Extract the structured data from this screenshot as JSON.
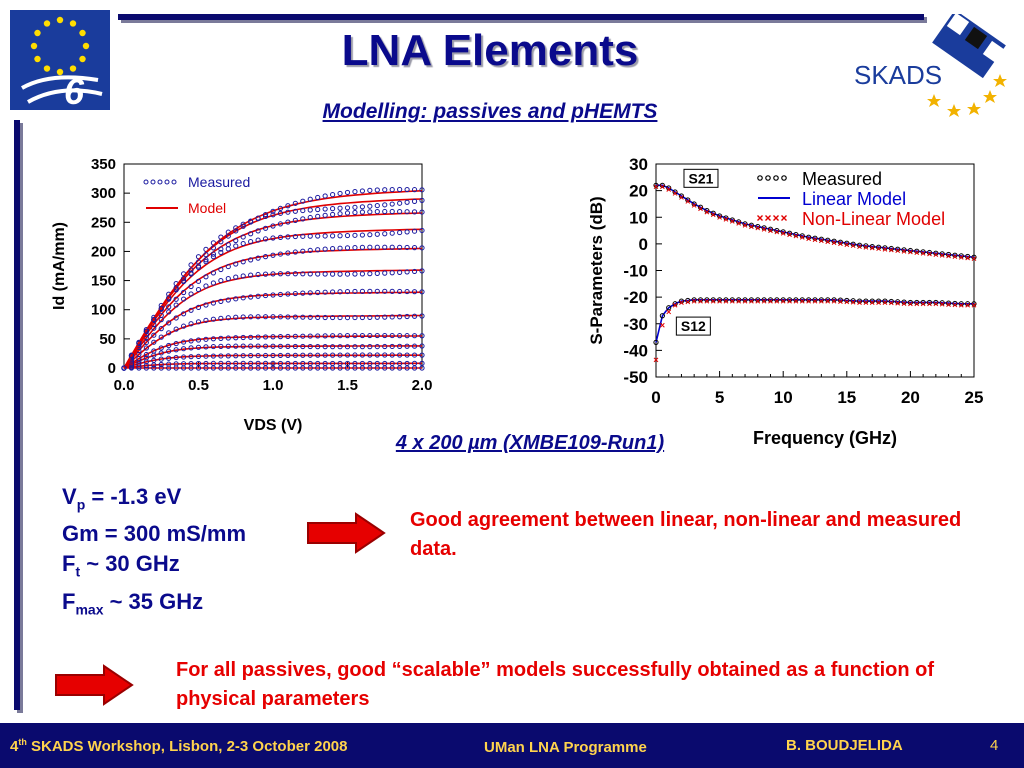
{
  "slide": {
    "title": "LNA Elements",
    "subtitle": "Modelling: passives and pHEMTS",
    "device_label": "4 x 200 µm (XMBE109-Run1)",
    "params": [
      {
        "base": "V",
        "sub": "p",
        "rest": " = -1.3 eV"
      },
      {
        "base": "Gm = 300 mS/mm",
        "sub": "",
        "rest": ""
      },
      {
        "base": "F",
        "sub": "t",
        "rest": " ~ 30 GHz"
      },
      {
        "base": "F",
        "sub": "max",
        "rest": " ~ 35 GHz"
      }
    ],
    "conclusion": "Good agreement between linear, non-linear and measured data.",
    "passives_note": "For all passives, good “scalable” models successfully obtained as a function of physical parameters",
    "logo_skads": "SKADS"
  },
  "footer": {
    "event_ordinal": "4",
    "event_sup": "th",
    "event_rest": " SKADS Workshop, Lisbon, 2-3 October 2008",
    "programme": "UMan LNA Programme",
    "author": "B. BOUDJELIDA",
    "page": "4"
  },
  "colors": {
    "navy": "#0a0a6e",
    "title_blue": "#0a0a8c",
    "accent_red": "#e60000",
    "measured": "#1a1aa0",
    "model_red": "#e00000",
    "linear_blue": "#0000d0",
    "footer_text": "#ffd34d"
  },
  "icons": {
    "eu_logo": "eu-flag-fp6-logo",
    "skads_logo": "skads-dish-logo",
    "arrow": "right-arrow-icon"
  },
  "chart_data": [
    {
      "type": "line",
      "xlabel": "VDS (V)",
      "ylabel": "Id (mA/mm)",
      "xlim": [
        0,
        2.0
      ],
      "ylim": [
        0,
        350
      ],
      "xticks": [
        "0.0",
        "0.5",
        "1.0",
        "1.5",
        "2.0"
      ],
      "yticks": [
        "0",
        "50",
        "100",
        "150",
        "200",
        "250",
        "300",
        "350"
      ],
      "legend": [
        {
          "label": "Measured",
          "style": "circles"
        },
        {
          "label": "Model",
          "style": "line"
        }
      ],
      "legend_position": "top-left",
      "grid": false,
      "curves_saturation_at_2V": [
        0,
        8,
        22,
        38,
        55,
        90,
        130,
        168,
        205,
        238,
        266,
        290,
        304
      ],
      "curves_knee_vds": [
        0.5,
        0.55,
        0.6,
        0.65,
        0.7,
        0.8,
        0.9,
        1.0,
        1.1,
        1.2,
        1.3,
        1.4,
        1.5
      ]
    },
    {
      "type": "line",
      "xlabel": "Frequency (GHz)",
      "ylabel": "S-Parameters (dB)",
      "xlim": [
        0,
        25
      ],
      "ylim": [
        -50,
        30
      ],
      "xticks": [
        "0",
        "5",
        "10",
        "15",
        "20",
        "25"
      ],
      "yticks": [
        "30",
        "20",
        "10",
        "0",
        "-10",
        "-20",
        "-30",
        "-40",
        "-50"
      ],
      "legend": [
        {
          "label": "Measured",
          "style": "circles"
        },
        {
          "label": "Linear Model",
          "style": "line"
        },
        {
          "label": "Non-Linear Model",
          "style": "crosses"
        }
      ],
      "legend_position": "top-right",
      "grid": false,
      "series_labels": [
        "S21",
        "S12"
      ],
      "S21": {
        "x": [
          0,
          0.5,
          1,
          2,
          3,
          4,
          5,
          6,
          7,
          8,
          9,
          10,
          12,
          14,
          16,
          18,
          20,
          22,
          24,
          25
        ],
        "y": [
          22,
          22,
          21,
          18,
          15,
          12.5,
          10.5,
          9,
          7.5,
          6.5,
          5.5,
          4.5,
          2.5,
          1,
          -0.5,
          -1.5,
          -2.5,
          -3.5,
          -4.5,
          -5
        ]
      },
      "S12": {
        "x": [
          0,
          0.5,
          1,
          1.5,
          2,
          3,
          4,
          5,
          6,
          8,
          10,
          12,
          14,
          16,
          18,
          20,
          22,
          24,
          25
        ],
        "y": [
          -37,
          -27,
          -24,
          -22.5,
          -21.5,
          -21,
          -21,
          -21,
          -21,
          -21,
          -21,
          -21,
          -21,
          -21.5,
          -21.5,
          -22,
          -22,
          -22.5,
          -22.5
        ]
      },
      "S12_nonlinear_low_f": {
        "x": [
          0,
          0.5,
          1
        ],
        "y": [
          -43,
          -30,
          -25
        ]
      }
    }
  ]
}
